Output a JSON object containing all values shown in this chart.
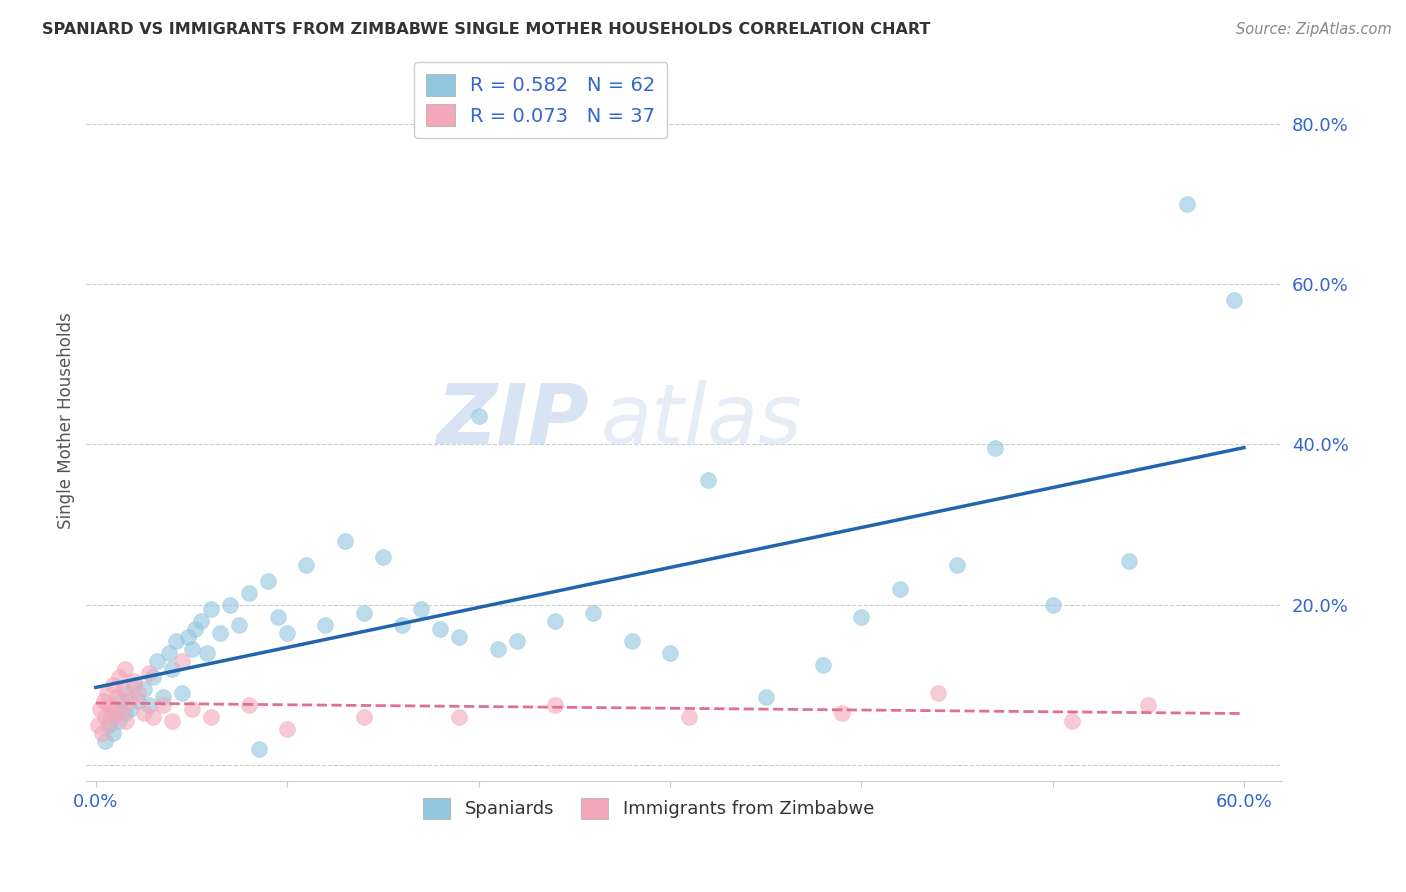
{
  "title": "SPANIARD VS IMMIGRANTS FROM ZIMBABWE SINGLE MOTHER HOUSEHOLDS CORRELATION CHART",
  "source": "Source: ZipAtlas.com",
  "ylabel": "Single Mother Households",
  "R_spaniards": 0.582,
  "N_spaniards": 62,
  "R_zimbabwe": 0.073,
  "N_zimbabwe": 37,
  "spaniard_color": "#92c5de",
  "zimbabwe_color": "#f4a7b9",
  "spaniard_line_color": "#2166ac",
  "zimbabwe_line_color": "#e07090",
  "legend_label_1": "Spaniards",
  "legend_label_2": "Immigrants from Zimbabwe",
  "watermark": "ZIPatlas",
  "xlim": [
    -0.005,
    0.62
  ],
  "ylim": [
    -0.02,
    0.88
  ],
  "spaniards_x": [
    0.005,
    0.007,
    0.008,
    0.009,
    0.01,
    0.012,
    0.013,
    0.015,
    0.016,
    0.018,
    0.02,
    0.022,
    0.025,
    0.028,
    0.03,
    0.032,
    0.035,
    0.038,
    0.04,
    0.042,
    0.045,
    0.048,
    0.05,
    0.052,
    0.055,
    0.058,
    0.06,
    0.065,
    0.07,
    0.075,
    0.08,
    0.085,
    0.09,
    0.095,
    0.1,
    0.11,
    0.12,
    0.13,
    0.14,
    0.15,
    0.16,
    0.17,
    0.18,
    0.19,
    0.2,
    0.21,
    0.22,
    0.24,
    0.26,
    0.28,
    0.3,
    0.32,
    0.35,
    0.38,
    0.4,
    0.42,
    0.45,
    0.47,
    0.5,
    0.54,
    0.57,
    0.595
  ],
  "spaniards_y": [
    0.03,
    0.05,
    0.06,
    0.04,
    0.07,
    0.055,
    0.08,
    0.065,
    0.09,
    0.07,
    0.1,
    0.08,
    0.095,
    0.075,
    0.11,
    0.13,
    0.085,
    0.14,
    0.12,
    0.155,
    0.09,
    0.16,
    0.145,
    0.17,
    0.18,
    0.14,
    0.195,
    0.165,
    0.2,
    0.175,
    0.215,
    0.02,
    0.23,
    0.185,
    0.165,
    0.25,
    0.175,
    0.28,
    0.19,
    0.26,
    0.175,
    0.195,
    0.17,
    0.16,
    0.435,
    0.145,
    0.155,
    0.18,
    0.19,
    0.155,
    0.14,
    0.355,
    0.085,
    0.125,
    0.185,
    0.22,
    0.25,
    0.395,
    0.2,
    0.255,
    0.7,
    0.58
  ],
  "zimbabwe_x": [
    0.001,
    0.002,
    0.003,
    0.004,
    0.005,
    0.006,
    0.007,
    0.008,
    0.009,
    0.01,
    0.011,
    0.012,
    0.013,
    0.014,
    0.015,
    0.016,
    0.018,
    0.02,
    0.022,
    0.025,
    0.028,
    0.03,
    0.035,
    0.04,
    0.045,
    0.05,
    0.06,
    0.08,
    0.1,
    0.14,
    0.19,
    0.24,
    0.31,
    0.39,
    0.44,
    0.51,
    0.55
  ],
  "zimbabwe_y": [
    0.05,
    0.07,
    0.04,
    0.08,
    0.06,
    0.09,
    0.075,
    0.055,
    0.1,
    0.065,
    0.085,
    0.11,
    0.07,
    0.095,
    0.12,
    0.055,
    0.08,
    0.105,
    0.09,
    0.065,
    0.115,
    0.06,
    0.075,
    0.055,
    0.13,
    0.07,
    0.06,
    0.075,
    0.045,
    0.06,
    0.06,
    0.075,
    0.06,
    0.065,
    0.09,
    0.055,
    0.075
  ]
}
